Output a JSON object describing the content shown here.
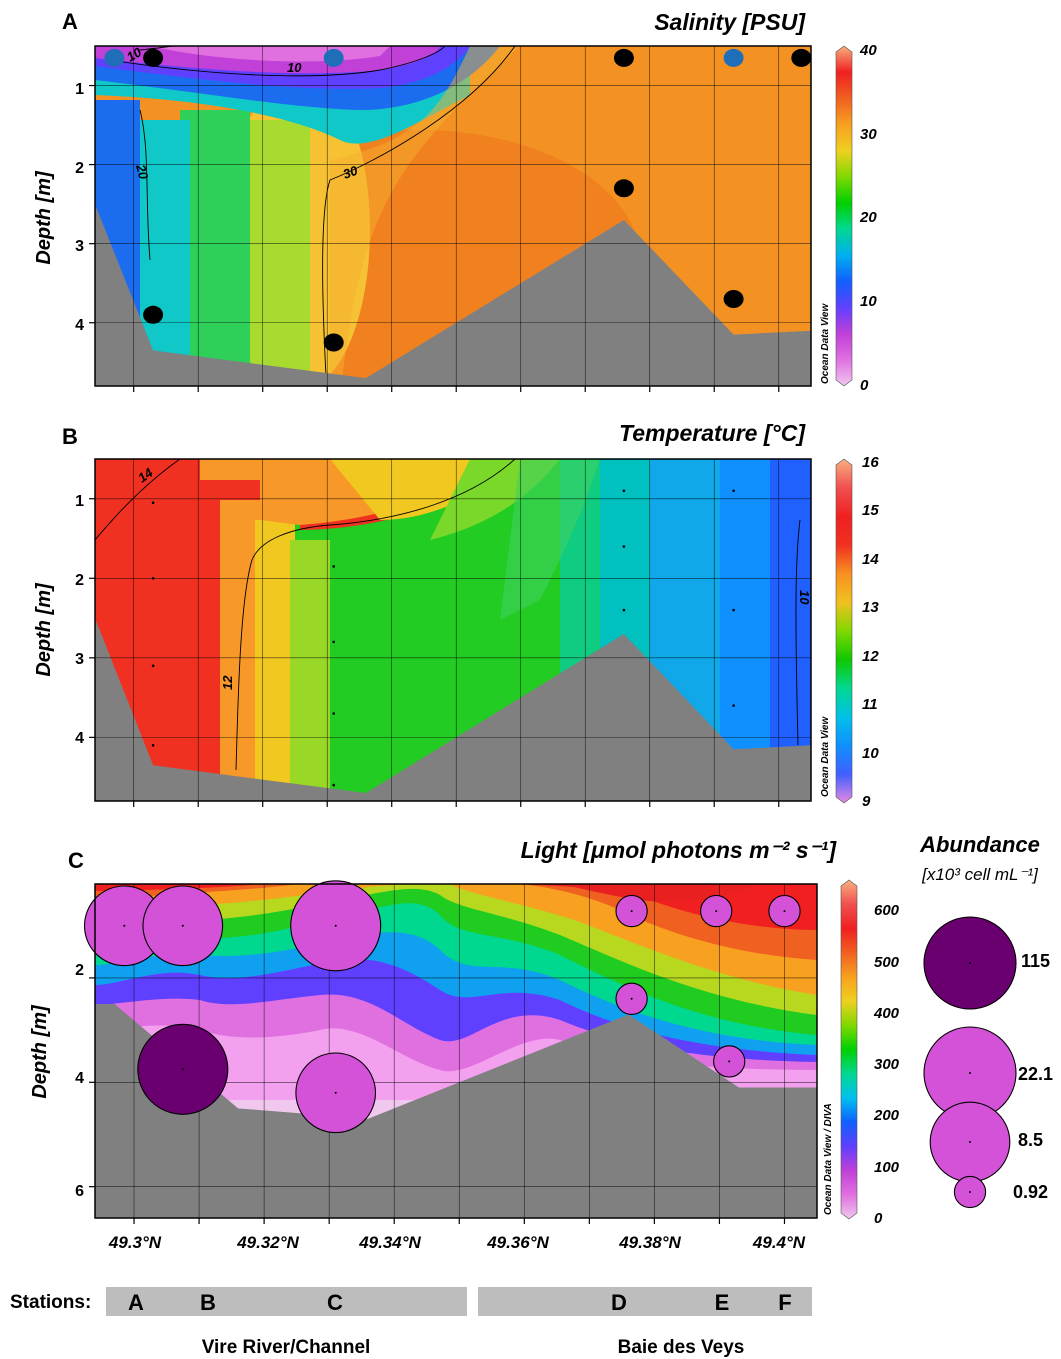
{
  "colors": {
    "salinity": [
      "#f0c8ef",
      "#e070e0",
      "#c040d8",
      "#6040ff",
      "#1060ff",
      "#00b0f0",
      "#00d890",
      "#00d000",
      "#80d800",
      "#f0d020",
      "#f8a020",
      "#f06020",
      "#f02020",
      "#f8b080"
    ],
    "temperature": [
      "#e888e0",
      "#4060ff",
      "#1090ff",
      "#00c0e8",
      "#00d890",
      "#10c800",
      "#80d800",
      "#f0c020",
      "#f89020",
      "#f03020",
      "#f02020",
      "#f05050",
      "#f8b080"
    ],
    "light": [
      "#f0c8ef",
      "#e070e0",
      "#c040d8",
      "#6040ff",
      "#1060ff",
      "#00c0f0",
      "#00d890",
      "#00d000",
      "#80d800",
      "#f0d020",
      "#f8a020",
      "#f06020",
      "#f02020",
      "#f05050",
      "#f8b080"
    ],
    "bathymetry": "#808080",
    "station_dot": "#000000",
    "station_dot_blue": "#1f6fb8",
    "abundance_large": "#6a006f",
    "abundance_small": "#d452d8",
    "station_bar": "#bdbdbd"
  },
  "x_ticks": [
    "49.3°N",
    "49.32°N",
    "49.34°N",
    "49.36°N",
    "49.38°N",
    "49.4°N"
  ],
  "panels": {
    "A": {
      "label": "A",
      "title": "Salinity [PSU]",
      "ylabel": "Depth [m]",
      "yticks": [
        "1",
        "2",
        "3",
        "4"
      ],
      "watermark": "Ocean Data View",
      "cbar_ticks": [
        "0",
        "10",
        "20",
        "30",
        "40"
      ],
      "contours": [
        "10",
        "10",
        "20",
        "30"
      ]
    },
    "B": {
      "label": "B",
      "title": "Temperature [°C]",
      "ylabel": "Depth [m]",
      "yticks": [
        "1",
        "2",
        "3",
        "4"
      ],
      "watermark": "Ocean Data View",
      "cbar_ticks": [
        "9",
        "10",
        "11",
        "12",
        "13",
        "14",
        "15",
        "16"
      ],
      "contours": [
        "14",
        "12",
        "10"
      ]
    },
    "C": {
      "label": "C",
      "title": "Light [μmol photons m⁻² s⁻¹]",
      "ylabel": "Depth [m]",
      "yticks": [
        "2",
        "4",
        "6"
      ],
      "watermark": "Ocean Data View / DIVA",
      "cbar_ticks": [
        "0",
        "100",
        "200",
        "300",
        "400",
        "500",
        "600"
      ]
    }
  },
  "abundance_legend": {
    "title": "Abundance",
    "unit": "[x10³ cell mL⁻¹]",
    "values": [
      "115",
      "22.1",
      "8.5",
      "0.92"
    ]
  },
  "stations": {
    "label": "Stations:",
    "names": [
      "A",
      "B",
      "C",
      "D",
      "E",
      "F"
    ]
  },
  "regions": [
    "Vire River/Channel",
    "Baie des Veys"
  ],
  "chart_data": [
    {
      "type": "heatmap",
      "panel": "A",
      "title": "Salinity [PSU]",
      "xlabel": "",
      "ylabel": "Depth [m]",
      "xlim": [
        49.294,
        49.405
      ],
      "ylim": [
        4.8,
        0.5
      ],
      "colorbar_range": [
        0,
        40
      ],
      "contour_levels": [
        10,
        20,
        30
      ],
      "bottom_profile": {
        "x": [
          49.294,
          49.303,
          49.317,
          49.336,
          49.376,
          49.393,
          49.405
        ],
        "depth": [
          2.5,
          4.35,
          4.5,
          4.7,
          2.7,
          4.15,
          4.1
        ]
      },
      "samples": [
        {
          "station": "A",
          "x": 49.297,
          "depth": 0.65,
          "marker": "blue"
        },
        {
          "station": "B",
          "x": 49.303,
          "depth": 0.65,
          "marker": "black"
        },
        {
          "station": "B",
          "x": 49.303,
          "depth": 3.9,
          "marker": "black"
        },
        {
          "station": "C",
          "x": 49.331,
          "depth": 0.65,
          "marker": "blue"
        },
        {
          "station": "C",
          "x": 49.331,
          "depth": 4.25,
          "marker": "black"
        },
        {
          "station": "D",
          "x": 49.376,
          "depth": 0.65,
          "marker": "black"
        },
        {
          "station": "D",
          "x": 49.376,
          "depth": 2.3,
          "marker": "black"
        },
        {
          "station": "E",
          "x": 49.393,
          "depth": 0.65,
          "marker": "blue"
        },
        {
          "station": "E",
          "x": 49.393,
          "depth": 3.7,
          "marker": "black"
        },
        {
          "station": "F",
          "x": 49.4035,
          "depth": 0.65,
          "marker": "black"
        }
      ],
      "grid": true
    },
    {
      "type": "heatmap",
      "panel": "B",
      "title": "Temperature [°C]",
      "xlabel": "",
      "ylabel": "Depth [m]",
      "xlim": [
        49.294,
        49.405
      ],
      "ylim": [
        4.8,
        0.5
      ],
      "colorbar_range": [
        9,
        16
      ],
      "contour_levels": [
        10,
        12,
        14
      ],
      "bottom_profile": {
        "x": [
          49.294,
          49.303,
          49.317,
          49.336,
          49.376,
          49.393,
          49.405
        ],
        "depth": [
          2.5,
          4.35,
          4.5,
          4.7,
          2.7,
          4.15,
          4.1
        ]
      },
      "grid": true
    },
    {
      "type": "heatmap",
      "panel": "C",
      "title": "Light [μmol photons m⁻² s⁻¹]",
      "xlabel": "",
      "ylabel": "Depth [m]",
      "xlim": [
        49.294,
        49.405
      ],
      "ylim": [
        6.6,
        0.2
      ],
      "colorbar_range": [
        0,
        620
      ],
      "bottom_profile": {
        "x": [
          49.294,
          49.297,
          49.316,
          49.336,
          49.376,
          49.393,
          49.405
        ],
        "depth": [
          2.5,
          2.5,
          4.5,
          4.7,
          2.7,
          4.1,
          4.1
        ]
      },
      "abundance_samples": [
        {
          "station": "A",
          "x": 49.2985,
          "depth": 1.0,
          "abundance": 8.5
        },
        {
          "station": "B",
          "x": 49.3075,
          "depth": 1.0,
          "abundance": 8.5
        },
        {
          "station": "C",
          "x": 49.331,
          "depth": 1.0,
          "abundance": 22.1
        },
        {
          "station": "B",
          "x": 49.3075,
          "depth": 3.75,
          "abundance": 115
        },
        {
          "station": "C",
          "x": 49.331,
          "depth": 4.2,
          "abundance": 8.5
        },
        {
          "station": "D",
          "x": 49.3765,
          "depth": 0.72,
          "abundance": 0.92
        },
        {
          "station": "D",
          "x": 49.3765,
          "depth": 2.4,
          "abundance": 0.92
        },
        {
          "station": "E",
          "x": 49.3895,
          "depth": 0.72,
          "abundance": 0.92
        },
        {
          "station": "E",
          "x": 49.3915,
          "depth": 3.6,
          "abundance": 0.92
        },
        {
          "station": "F",
          "x": 49.4,
          "depth": 0.72,
          "abundance": 0.92
        }
      ],
      "grid": true
    }
  ]
}
